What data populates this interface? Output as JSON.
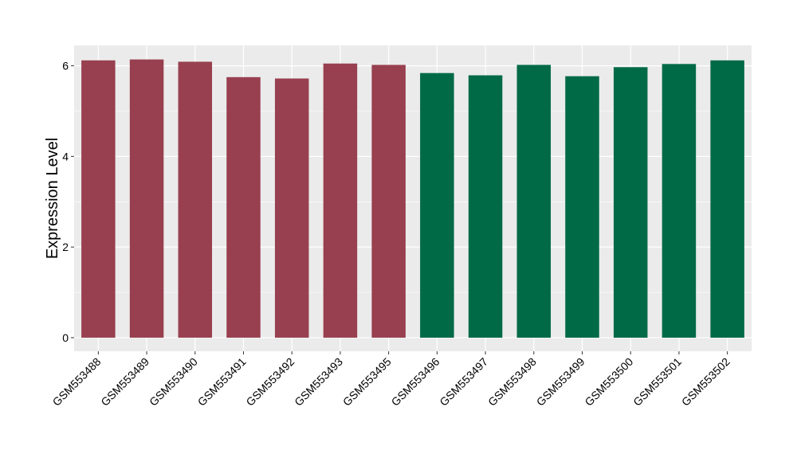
{
  "chart_data": {
    "type": "bar",
    "title": "",
    "xlabel": "",
    "ylabel": "Expression Level",
    "ylim": [
      -0.3,
      6.45
    ],
    "yticks": [
      0,
      2,
      4,
      6
    ],
    "grid": true,
    "categories": [
      "GSM553488",
      "GSM553489",
      "GSM553490",
      "GSM553491",
      "GSM553492",
      "GSM553493",
      "GSM553495",
      "GSM553496",
      "GSM553497",
      "GSM553498",
      "GSM553499",
      "GSM553500",
      "GSM553501",
      "GSM553502"
    ],
    "values": [
      6.12,
      6.14,
      6.09,
      5.75,
      5.72,
      6.05,
      6.02,
      5.84,
      5.79,
      6.02,
      5.77,
      5.97,
      6.04,
      6.12
    ],
    "groups": [
      "a",
      "a",
      "a",
      "a",
      "a",
      "a",
      "a",
      "b",
      "b",
      "b",
      "b",
      "b",
      "b",
      "b"
    ],
    "group_colors": {
      "a": "#98404F",
      "b": "#006A46"
    },
    "panel_color": "#EBEBEB",
    "grid_color": "#FFFFFF"
  }
}
